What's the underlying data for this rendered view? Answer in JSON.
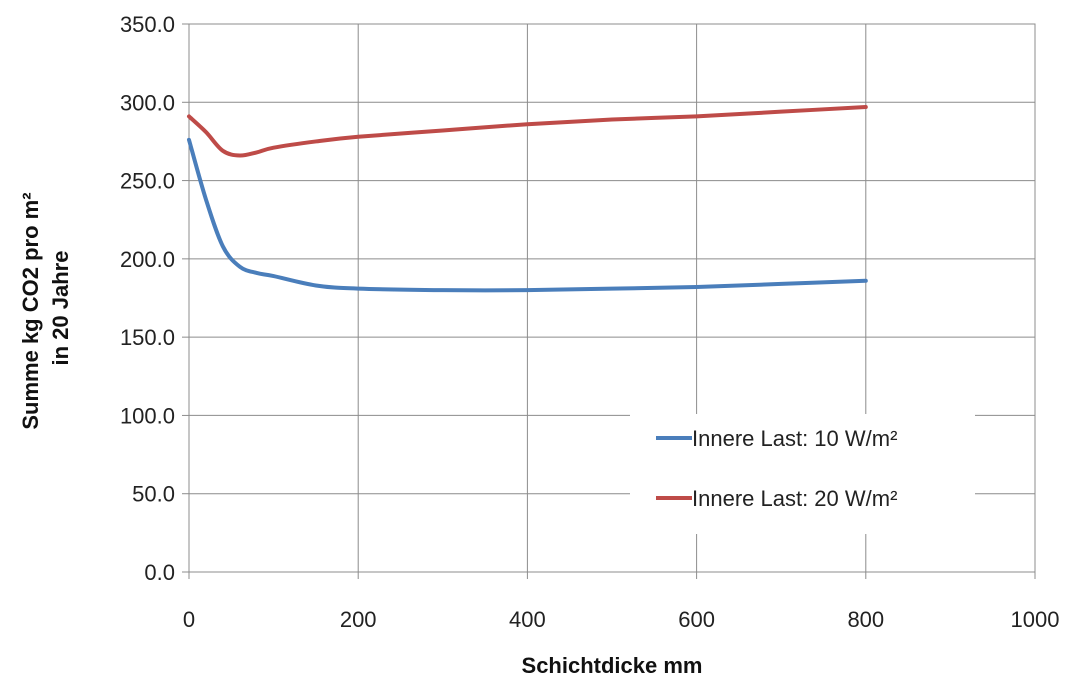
{
  "chart_data": {
    "type": "line",
    "title": "",
    "xlabel": "Schichtdicke mm",
    "ylabel_lines": [
      "Summe kg CO2 pro m²",
      "in 20 Jahre"
    ],
    "xlim": [
      0,
      1000
    ],
    "ylim": [
      0,
      350
    ],
    "x_ticks": [
      0,
      200,
      400,
      600,
      800,
      1000
    ],
    "x_tick_labels": [
      "0",
      "200",
      "400",
      "600",
      "800",
      "1000"
    ],
    "y_ticks": [
      0,
      50,
      100,
      150,
      200,
      250,
      300,
      350
    ],
    "y_tick_labels": [
      "0.0",
      "50.0",
      "100.0",
      "150.0",
      "200.0",
      "250.0",
      "300.0",
      "350.0"
    ],
    "grid": true,
    "legend_position": "bottom-right",
    "series": [
      {
        "name": "Innere Last: 10 W/m²",
        "color": "#4a7ebb",
        "x": [
          0,
          20,
          40,
          60,
          80,
          100,
          150,
          200,
          300,
          400,
          500,
          600,
          700,
          800
        ],
        "y": [
          276,
          238,
          208,
          195,
          191,
          189,
          183,
          181,
          180,
          180,
          181,
          182,
          184,
          186
        ]
      },
      {
        "name": "Innere Last: 20 W/m²",
        "color": "#be4b48",
        "x": [
          0,
          20,
          40,
          60,
          80,
          100,
          150,
          200,
          300,
          400,
          500,
          600,
          700,
          800
        ],
        "y": [
          291,
          281,
          269,
          266,
          268,
          271,
          275,
          278,
          282,
          286,
          289,
          291,
          294,
          297
        ]
      }
    ]
  }
}
